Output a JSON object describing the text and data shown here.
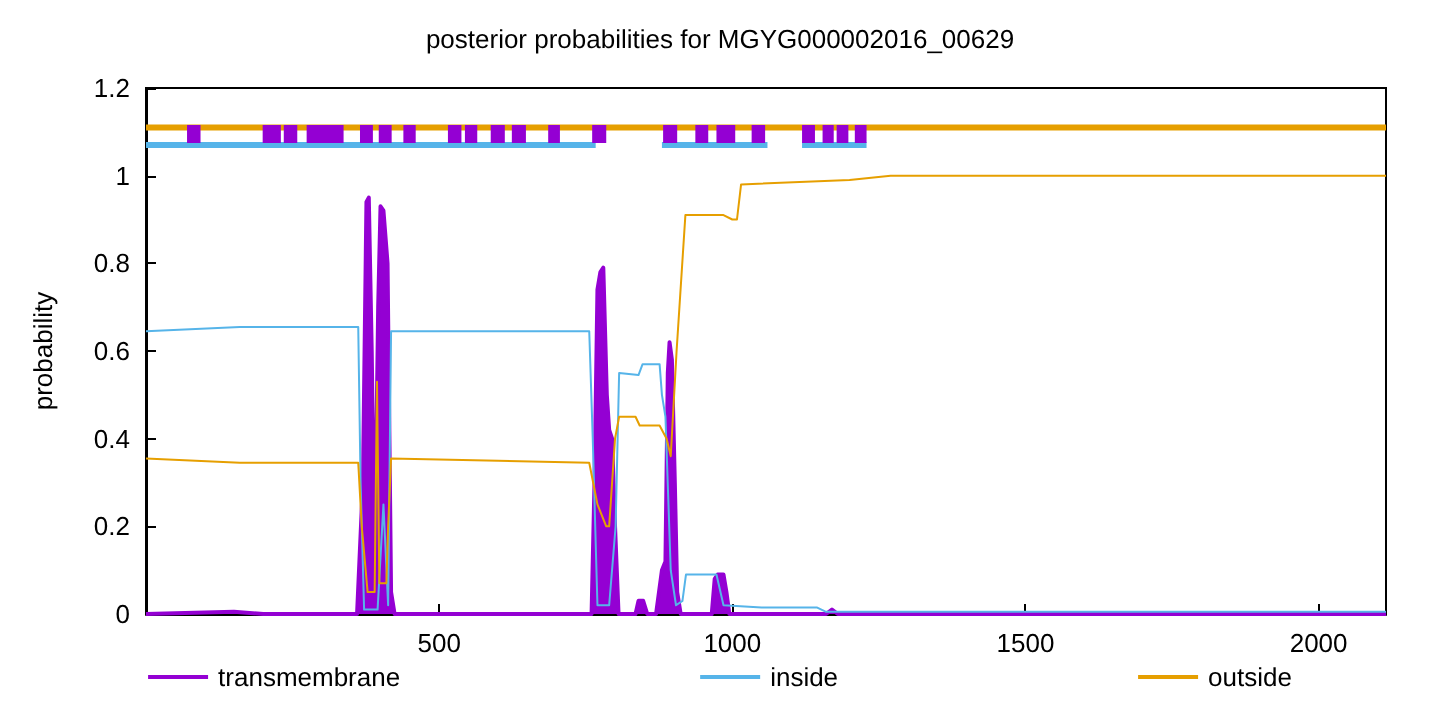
{
  "chart_data": {
    "type": "line",
    "title": "posterior probabilities for MGYG000002016_00629",
    "ylabel": "probability",
    "xlim": [
      0,
      2115
    ],
    "xticks": [
      500,
      1000,
      1500,
      2000
    ],
    "ylim": [
      0,
      1.2
    ],
    "yticks": [
      0,
      0.2,
      0.4,
      0.6,
      0.8,
      1,
      1.2
    ],
    "grid": false,
    "legend": "bottom",
    "marker": "none",
    "series": [
      {
        "name": "transmembrane",
        "type": "area",
        "color": "#9400d3",
        "x": [
          0,
          150,
          200,
          360,
          370,
          376,
          380,
          385,
          390,
          396,
          400,
          405,
          412,
          418,
          424,
          430,
          760,
          765,
          770,
          775,
          780,
          786,
          790,
          795,
          800,
          806,
          812,
          835,
          840,
          848,
          855,
          870,
          880,
          886,
          890,
          893,
          897,
          902,
          906,
          912,
          965,
          970,
          975,
          985,
          990,
          995,
          1160,
          1170,
          1180,
          2115
        ],
        "values": [
          0,
          0.005,
          0,
          0,
          0.3,
          0.94,
          0.95,
          0.6,
          0.1,
          0.7,
          0.93,
          0.92,
          0.8,
          0.05,
          0,
          0,
          0,
          0.3,
          0.74,
          0.78,
          0.79,
          0.5,
          0.42,
          0.4,
          0.2,
          0,
          0,
          0,
          0.03,
          0.03,
          0,
          0,
          0.1,
          0.12,
          0.55,
          0.62,
          0.58,
          0.3,
          0.05,
          0,
          0,
          0.08,
          0.09,
          0.09,
          0.05,
          0,
          0,
          0.01,
          0,
          0
        ]
      },
      {
        "name": "inside",
        "color": "#56b4e9",
        "x": [
          0,
          160,
          362,
          366,
          372,
          395,
          405,
          413,
          418,
          756,
          762,
          770,
          790,
          801,
          807,
          840,
          847,
          876,
          880,
          886,
          895,
          904,
          915,
          921,
          973,
          985,
          1050,
          1144,
          1160,
          2115
        ],
        "values": [
          0.645,
          0.655,
          0.655,
          0.3,
          0.01,
          0.01,
          0.25,
          0.02,
          0.645,
          0.645,
          0.4,
          0.02,
          0.02,
          0.2,
          0.55,
          0.545,
          0.57,
          0.57,
          0.5,
          0.45,
          0.1,
          0.02,
          0.03,
          0.09,
          0.09,
          0.02,
          0.015,
          0.015,
          0.005,
          0.005
        ]
      },
      {
        "name": "outside",
        "color": "#e69f00",
        "x": [
          0,
          160,
          362,
          368,
          378,
          390,
          394,
          398,
          410,
          413,
          418,
          756,
          770,
          785,
          790,
          800,
          807,
          835,
          842,
          876,
          888,
          895,
          905,
          920,
          985,
          1000,
          1008,
          1015,
          1200,
          1270,
          2115
        ],
        "values": [
          0.355,
          0.345,
          0.345,
          0.2,
          0.05,
          0.05,
          0.53,
          0.07,
          0.07,
          0.2,
          0.355,
          0.345,
          0.25,
          0.2,
          0.2,
          0.4,
          0.45,
          0.45,
          0.43,
          0.43,
          0.4,
          0.36,
          0.6,
          0.91,
          0.91,
          0.9,
          0.9,
          0.98,
          0.99,
          1.0,
          1.0
        ]
      },
      {
        "color": "#56b4e9",
        "x": [
          0,
          767,
          800,
          880,
          1060,
          1090,
          1119,
          1229
        ],
        "values": [
          1.07,
          1.07,
          null,
          1.07,
          1.07,
          null,
          1.07,
          1.07
        ]
      },
      {
        "color": "#e69f00",
        "x": [
          0,
          2115
        ],
        "values": [
          1.11,
          1.11
        ]
      },
      {
        "color": "#9400d3",
        "x": [
          70,
          93,
          95,
          199,
          230,
          232,
          235,
          258,
          260,
          274,
          337,
          340,
          365,
          387,
          390,
          397,
          419,
          425,
          439,
          460,
          480,
          515,
          538,
          540,
          544,
          565,
          570,
          588,
          612,
          615,
          624,
          648,
          660,
          686,
          706,
          720,
          761,
          785,
          800,
          882,
          906,
          920,
          937,
          959,
          965,
          973,
          1005,
          1020,
          1033,
          1056,
          1080,
          1119,
          1141,
          1150,
          1154,
          1173,
          1175,
          1178,
          1198,
          1200,
          1209,
          1229
        ],
        "values": [
          1.095,
          1.095,
          null,
          1.095,
          1.095,
          null,
          1.095,
          1.095,
          null,
          1.095,
          1.095,
          null,
          1.095,
          1.095,
          null,
          1.095,
          1.095,
          null,
          1.095,
          1.095,
          null,
          1.095,
          1.095,
          null,
          1.095,
          1.095,
          null,
          1.095,
          1.095,
          null,
          1.095,
          1.095,
          null,
          1.095,
          1.095,
          null,
          1.095,
          1.095,
          null,
          1.095,
          1.095,
          null,
          1.095,
          1.095,
          null,
          1.095,
          1.095,
          null,
          1.095,
          1.095,
          null,
          1.095,
          1.095,
          null,
          1.095,
          1.095,
          null,
          1.095,
          1.095,
          null,
          1.095,
          1.095
        ]
      }
    ]
  }
}
